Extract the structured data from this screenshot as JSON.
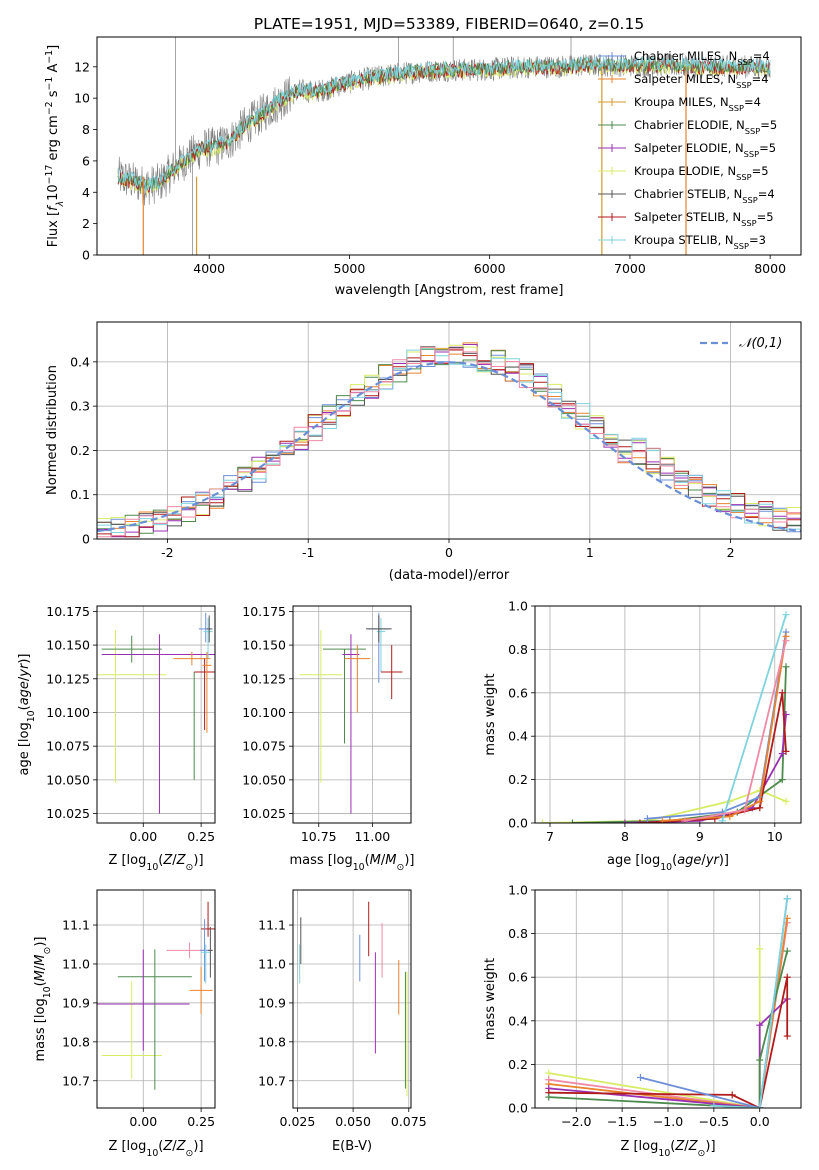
{
  "figure": {
    "title": "PLATE=1951, MJD=53389, FIBERID=0640, z=0.15"
  },
  "palette": {
    "Chabrier MILES": "#6e8fd8",
    "Salpeter MILES": "#e8832e",
    "Kroupa MILES": "#d49a2c",
    "Chabrier ELODIE": "#4d8a4d",
    "Salpeter ELODIE": "#9b30b4",
    "Kroupa ELODIE": "#d8ec66",
    "Chabrier STELIB": "#555555",
    "Salpeter STELIB": "#b01c1c",
    "Kroupa STELIB": "#7fd3df",
    "data": "#7f7f7f",
    "pink": "#f08aa6",
    "normal_curve": "#6a8fd6"
  },
  "chart_data": [
    {
      "id": "spectrum",
      "type": "line",
      "xlabel": "wavelength [Angstrom, rest frame]",
      "ylabel": "Flux [f_λ 10^-17 erg cm^-2 s^-1 A^-1]",
      "xlim": [
        3200,
        8220
      ],
      "ylim": [
        0,
        13.9
      ],
      "xticks": [
        4000,
        5000,
        6000,
        7000,
        8000
      ],
      "yticks": [
        0,
        2,
        4,
        6,
        8,
        10,
        12
      ],
      "grid": false,
      "legend_position": "right",
      "legend": [
        "Chabrier MILES, N_SSP=4",
        "Salpeter MILES, N_SSP=4",
        "Kroupa MILES, N_SSP=4",
        "Chabrier ELODIE, N_SSP=5",
        "Salpeter ELODIE, N_SSP=5",
        "Kroupa ELODIE, N_SSP=5",
        "Chabrier STELIB, N_SSP=4",
        "Salpeter STELIB, N_SSP=5",
        "Kroupa STELIB, N_SSP=3"
      ],
      "model_curve_wavelength": [
        3350,
        3450,
        3550,
        3650,
        3750,
        3850,
        3950,
        4050,
        4150,
        4250,
        4350,
        4450,
        4550,
        4650,
        4750,
        4850,
        4950,
        5100,
        5300,
        5500,
        5700,
        5900,
        6100,
        6300,
        6500,
        6700,
        6900,
        7100,
        7300,
        7500,
        7700,
        7900,
        8000
      ],
      "model_curve_flux": [
        5.0,
        4.7,
        4.4,
        4.6,
        5.5,
        6.2,
        6.8,
        6.9,
        7.3,
        8.2,
        8.8,
        9.5,
        10.1,
        10.5,
        10.4,
        10.6,
        10.9,
        11.2,
        11.5,
        11.7,
        11.8,
        11.8,
        11.9,
        12.0,
        12.0,
        12.1,
        12.1,
        12.1,
        12.1,
        12.0,
        12.0,
        12.0,
        11.9
      ]
    },
    {
      "id": "residuals",
      "type": "line",
      "xlabel": "(data-model)/error",
      "ylabel": "Normed distribution",
      "xlim": [
        -2.5,
        2.5
      ],
      "ylim": [
        0,
        0.49
      ],
      "xticks": [
        -2,
        -1,
        0,
        1,
        2
      ],
      "yticks": [
        0.0,
        0.1,
        0.2,
        0.3,
        0.4
      ],
      "grid": true,
      "legend": [
        "𝒩(0,1)"
      ],
      "legend_position": "top-right",
      "histogram_bin_width": 0.1
    },
    {
      "id": "age_vs_Z",
      "type": "scatter",
      "xlabel": "Z [log10(Z/Z⊙)]",
      "ylabel": "age  [log10(age/yr)]",
      "xlim": [
        -0.2,
        0.31
      ],
      "ylim": [
        10.018,
        10.179
      ],
      "xticks": [
        "0.00",
        "0.25"
      ],
      "xtick_values": [
        0,
        0.25
      ],
      "yticks": [
        "10.025",
        "10.050",
        "10.075",
        "10.100",
        "10.125",
        "10.150",
        "10.175"
      ],
      "ytick_values": [
        10.025,
        10.05,
        10.075,
        10.1,
        10.125,
        10.15,
        10.175
      ],
      "grid": true,
      "points": [
        {
          "model": "Kroupa ELODIE",
          "x": -0.12,
          "y": 10.128,
          "xerr": 0.22,
          "yerr_lo": 0.08,
          "yerr_hi": 0.033
        },
        {
          "model": "Chabrier ELODIE",
          "x": -0.05,
          "y": 10.147,
          "xerr": 0.13,
          "yerr_lo": 0.01,
          "yerr_hi": 0.01
        },
        {
          "model": "Salpeter ELODIE",
          "x": 0.07,
          "y": 10.143,
          "xerr": 0.25,
          "yerr_lo": 0.118,
          "yerr_hi": 0.015
        },
        {
          "model": "Chabrier ELODIE",
          "x": 0.22,
          "y": 10.13,
          "xerr": 0.0,
          "yerr_lo": 0.08,
          "yerr_hi": 0.0
        },
        {
          "model": "Salpeter MILES",
          "x": 0.21,
          "y": 10.14,
          "xerr": 0.08,
          "yerr_lo": 0.005,
          "yerr_hi": 0.005
        },
        {
          "model": "Salpeter STELIB",
          "x": 0.265,
          "y": 10.13,
          "xerr": 0.045,
          "yerr_lo": 0.043,
          "yerr_hi": 0.01
        },
        {
          "model": "Chabrier MILES",
          "x": 0.27,
          "y": 10.162,
          "xerr": 0.03,
          "yerr_lo": 0.01,
          "yerr_hi": 0.012
        },
        {
          "model": "Salpeter MILES",
          "x": 0.275,
          "y": 10.135,
          "xerr": 0.02,
          "yerr_lo": 0.05,
          "yerr_hi": 0.01
        },
        {
          "model": "Kroupa STELIB",
          "x": 0.28,
          "y": 10.16,
          "xerr": 0.02,
          "yerr_lo": 0.02,
          "yerr_hi": 0.01
        },
        {
          "model": "Chabrier STELIB",
          "x": 0.285,
          "y": 10.162,
          "xerr": 0.01,
          "yerr_lo": 0.01,
          "yerr_hi": 0.01
        }
      ]
    },
    {
      "id": "age_vs_mass",
      "type": "scatter",
      "xlabel": "mass [log10(M/M⊙)]",
      "xlim": [
        10.63,
        11.18
      ],
      "ylim": [
        10.018,
        10.179
      ],
      "xticks": [
        "10.75",
        "11.00"
      ],
      "xtick_values": [
        10.75,
        11.0
      ],
      "yticks": [
        "10.025",
        "10.050",
        "10.075",
        "10.100",
        "10.125",
        "10.150",
        "10.175"
      ],
      "ytick_values": [
        10.025,
        10.05,
        10.075,
        10.1,
        10.125,
        10.15,
        10.175
      ],
      "grid": true,
      "points": [
        {
          "model": "Kroupa ELODIE",
          "x": 10.76,
          "y": 10.128,
          "xerr": 0.1,
          "yerr_lo": 0.08,
          "yerr_hi": 0.033
        },
        {
          "model": "Chabrier ELODIE",
          "x": 10.87,
          "y": 10.147,
          "xerr": 0.1,
          "yerr_lo": 0.07,
          "yerr_hi": 0.0
        },
        {
          "model": "Salpeter ELODIE",
          "x": 10.9,
          "y": 10.143,
          "xerr": 0.04,
          "yerr_lo": 0.118,
          "yerr_hi": 0.015
        },
        {
          "model": "Salpeter MILES",
          "x": 10.93,
          "y": 10.14,
          "xerr": 0.06,
          "yerr_lo": 0.04,
          "yerr_hi": 0.01
        },
        {
          "model": "Chabrier MILES",
          "x": 11.03,
          "y": 10.162,
          "xerr": 0.05,
          "yerr_lo": 0.04,
          "yerr_hi": 0.012
        },
        {
          "model": "Kroupa STELIB",
          "x": 11.04,
          "y": 10.16,
          "xerr": 0.02,
          "yerr_lo": 0.03,
          "yerr_hi": 0.01
        },
        {
          "model": "Salpeter STELIB",
          "x": 11.09,
          "y": 10.13,
          "xerr": 0.05,
          "yerr_lo": 0.02,
          "yerr_hi": 0.02
        },
        {
          "model": "Chabrier STELIB",
          "x": 11.03,
          "y": 10.162,
          "xerr": 0.06,
          "yerr_lo": 0.01,
          "yerr_hi": 0.01
        }
      ]
    },
    {
      "id": "weight_vs_age",
      "type": "line",
      "xlabel": "age  [log10(age/yr)]",
      "ylabel": "mass weight",
      "xlim": [
        6.8,
        10.35
      ],
      "ylim": [
        0,
        1.0
      ],
      "xticks": [
        "7",
        "8",
        "9",
        "10"
      ],
      "xtick_values": [
        7,
        8,
        9,
        10
      ],
      "yticks": [
        "0.0",
        "0.2",
        "0.4",
        "0.6",
        "0.8",
        "1.0"
      ],
      "ytick_values": [
        0,
        0.2,
        0.4,
        0.6,
        0.8,
        1.0
      ],
      "grid": true,
      "series": [
        {
          "model": "Kroupa ELODIE",
          "x": [
            6.9,
            8.3,
            9.4,
            9.8,
            10.15
          ],
          "y": [
            0.0,
            0.01,
            0.1,
            0.15,
            0.1
          ]
        },
        {
          "model": "Chabrier ELODIE",
          "x": [
            7.3,
            8.6,
            9.5,
            10.1,
            10.15
          ],
          "y": [
            0.0,
            0.01,
            0.05,
            0.2,
            0.72
          ]
        },
        {
          "model": "Salpeter ELODIE",
          "x": [
            8.0,
            9.0,
            9.7,
            10.1,
            10.15
          ],
          "y": [
            0.0,
            0.01,
            0.07,
            0.32,
            0.5
          ]
        },
        {
          "model": "Salpeter STELIB",
          "x": [
            8.2,
            9.2,
            9.8,
            10.1,
            10.15
          ],
          "y": [
            0.0,
            0.02,
            0.07,
            0.6,
            0.33
          ]
        },
        {
          "model": "Chabrier MILES",
          "x": [
            8.3,
            9.3,
            9.8,
            10.15
          ],
          "y": [
            0.02,
            0.05,
            0.12,
            0.88
          ]
        },
        {
          "model": "Salpeter MILES",
          "x": [
            8.5,
            9.4,
            9.8,
            10.15
          ],
          "y": [
            0.01,
            0.03,
            0.1,
            0.86
          ]
        },
        {
          "model": "Kroupa STELIB",
          "x": [
            9.3,
            10.15
          ],
          "y": [
            0.01,
            0.96
          ]
        },
        {
          "model": "pink",
          "x": [
            8.8,
            9.6,
            10.15
          ],
          "y": [
            0.01,
            0.06,
            0.84
          ]
        }
      ]
    },
    {
      "id": "mass_vs_Z",
      "type": "scatter",
      "xlabel": "Z [log10(Z/Z⊙)]",
      "ylabel": "mass [log10(M/M⊙)]",
      "xlim": [
        -0.2,
        0.31
      ],
      "ylim": [
        10.63,
        11.19
      ],
      "xticks": [
        "0.00",
        "0.25"
      ],
      "xtick_values": [
        0,
        0.25
      ],
      "yticks": [
        "10.7",
        "10.8",
        "10.9",
        "11.0",
        "11.1"
      ],
      "ytick_values": [
        10.7,
        10.8,
        10.9,
        11.0,
        11.1
      ],
      "grid": true,
      "points": [
        {
          "model": "Kroupa ELODIE",
          "x": -0.05,
          "y": 10.765,
          "xerr": 0.13,
          "yerr_lo": 0.06,
          "yerr_hi": 0.19
        },
        {
          "model": "Chabrier ELODIE",
          "x": 0.05,
          "y": 10.967,
          "xerr": 0.16,
          "yerr_lo": 0.29,
          "yerr_hi": 0.07
        },
        {
          "model": "Salpeter ELODIE",
          "x": 0.0,
          "y": 10.897,
          "xerr": 0.2,
          "yerr_lo": 0.12,
          "yerr_hi": 0.14
        },
        {
          "model": "pink",
          "x": 0.2,
          "y": 11.035,
          "xerr": 0.1,
          "yerr_lo": 0.02,
          "yerr_hi": 0.02
        },
        {
          "model": "Salpeter MILES",
          "x": 0.25,
          "y": 10.932,
          "xerr": 0.05,
          "yerr_lo": 0.06,
          "yerr_hi": 0.06
        },
        {
          "model": "Salpeter STELIB",
          "x": 0.28,
          "y": 11.09,
          "xerr": 0.03,
          "yerr_lo": 0.02,
          "yerr_hi": 0.07
        },
        {
          "model": "Chabrier MILES",
          "x": 0.265,
          "y": 11.035,
          "xerr": 0.02,
          "yerr_lo": 0.08,
          "yerr_hi": 0.08
        },
        {
          "model": "Kroupa STELIB",
          "x": 0.27,
          "y": 11.03,
          "xerr": 0.02,
          "yerr_lo": 0.08,
          "yerr_hi": 0.02
        },
        {
          "model": "Chabrier STELIB",
          "x": 0.29,
          "y": 11.035,
          "xerr": 0.01,
          "yerr_lo": 0.07,
          "yerr_hi": 0.06
        }
      ]
    },
    {
      "id": "mass_vs_ebv",
      "type": "scatter",
      "xlabel": "E(B-V)",
      "xlim": [
        0.023,
        0.076
      ],
      "ylim": [
        10.63,
        11.19
      ],
      "xticks": [
        "0.025",
        "0.050",
        "0.075"
      ],
      "xtick_values": [
        0.025,
        0.05,
        0.075
      ],
      "yticks": [
        "10.7",
        "10.8",
        "10.9",
        "11.0",
        "11.1"
      ],
      "ytick_values": [
        10.7,
        10.8,
        10.9,
        11.0,
        11.1
      ],
      "grid": true,
      "points": [
        {
          "model": "Chabrier STELIB",
          "x": 0.0265,
          "y": 11.04,
          "yerr_lo": 0.04,
          "yerr_hi": 0.08
        },
        {
          "model": "Kroupa STELIB",
          "x": 0.026,
          "y": 11.0,
          "yerr_lo": 0.05,
          "yerr_hi": 0.05
        },
        {
          "model": "Chabrier MILES",
          "x": 0.053,
          "y": 11.015,
          "yerr_lo": 0.06,
          "yerr_hi": 0.06
        },
        {
          "model": "Salpeter STELIB",
          "x": 0.057,
          "y": 11.09,
          "yerr_lo": 0.07,
          "yerr_hi": 0.07
        },
        {
          "model": "Salpeter ELODIE",
          "x": 0.06,
          "y": 10.9,
          "yerr_lo": 0.13,
          "yerr_hi": 0.13
        },
        {
          "model": "pink",
          "x": 0.063,
          "y": 11.035,
          "yerr_lo": 0.07,
          "yerr_hi": 0.07
        },
        {
          "model": "Salpeter MILES",
          "x": 0.0705,
          "y": 10.94,
          "yerr_lo": 0.07,
          "yerr_hi": 0.07
        },
        {
          "model": "Kroupa ELODIE",
          "x": 0.0742,
          "y": 10.76,
          "yerr_lo": 0.1,
          "yerr_hi": 0.22
        },
        {
          "model": "Chabrier ELODIE",
          "x": 0.0735,
          "y": 10.96,
          "yerr_lo": 0.28,
          "yerr_hi": 0.02
        }
      ]
    },
    {
      "id": "weight_vs_Z",
      "type": "line",
      "xlabel": "Z [log10(Z/Z⊙)]",
      "ylabel": "mass weight",
      "xlim": [
        -2.45,
        0.45
      ],
      "ylim": [
        0,
        1.0
      ],
      "xticks": [
        "−2.0",
        "−1.5",
        "−1.0",
        "−0.5",
        "0.0"
      ],
      "xtick_values": [
        -2.0,
        -1.5,
        -1.0,
        -0.5,
        0.0
      ],
      "yticks": [
        "0.0",
        "0.2",
        "0.4",
        "0.6",
        "0.8",
        "1.0"
      ],
      "ytick_values": [
        0,
        0.2,
        0.4,
        0.6,
        0.8,
        1.0
      ],
      "grid": true,
      "series": [
        {
          "model": "Kroupa ELODIE",
          "x": [
            -2.3,
            0.0,
            0.0
          ],
          "y": [
            0.16,
            0.0,
            0.73
          ]
        },
        {
          "model": "pink",
          "x": [
            -2.3,
            0.0,
            0.3
          ],
          "y": [
            0.13,
            0.0,
            0.85
          ]
        },
        {
          "model": "Salpeter MILES",
          "x": [
            -2.3,
            0.0,
            0.3
          ],
          "y": [
            0.11,
            0.0,
            0.87
          ]
        },
        {
          "model": "Salpeter ELODIE",
          "x": [
            -2.3,
            0.0,
            0.0,
            0.3
          ],
          "y": [
            0.09,
            0.0,
            0.38,
            0.5
          ]
        },
        {
          "model": "Salpeter STELIB",
          "x": [
            -2.3,
            -0.3,
            0.0,
            0.3,
            0.3
          ],
          "y": [
            0.07,
            0.06,
            0.0,
            0.6,
            0.33
          ]
        },
        {
          "model": "Chabrier ELODIE",
          "x": [
            -2.3,
            0.0,
            0.0,
            0.3
          ],
          "y": [
            0.05,
            0.0,
            0.22,
            0.72
          ]
        },
        {
          "model": "Chabrier MILES",
          "x": [
            -1.3,
            0.0,
            0.3
          ],
          "y": [
            0.14,
            0.0,
            0.96
          ]
        },
        {
          "model": "Kroupa STELIB",
          "x": [
            -0.5,
            0.0,
            0.3
          ],
          "y": [
            0.01,
            0.0,
            0.96
          ]
        }
      ]
    }
  ]
}
